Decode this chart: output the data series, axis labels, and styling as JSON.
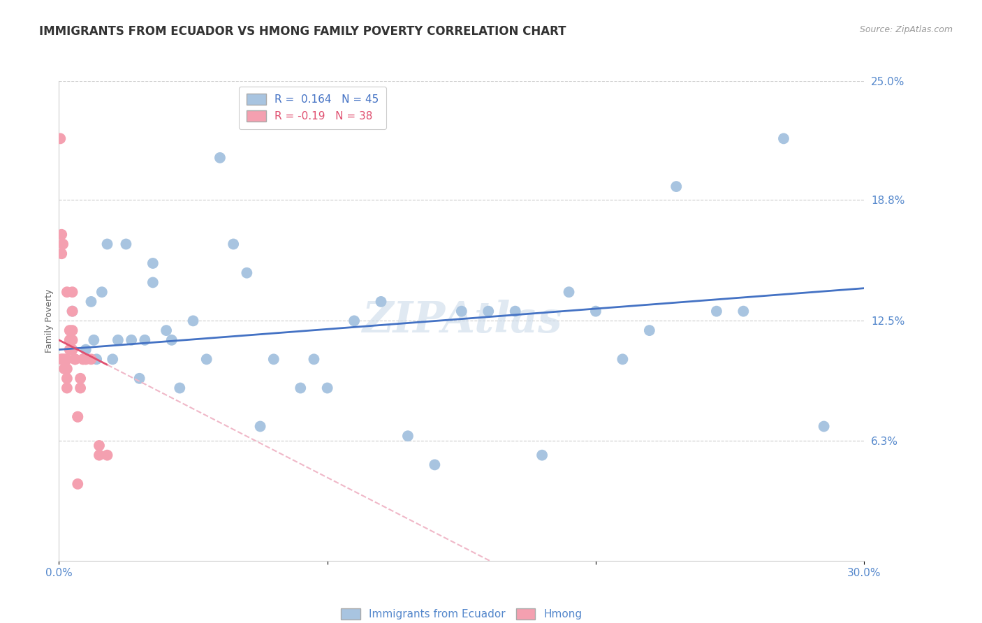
{
  "title": "IMMIGRANTS FROM ECUADOR VS HMONG FAMILY POVERTY CORRELATION CHART",
  "source": "Source: ZipAtlas.com",
  "ylabel": "Family Poverty",
  "watermark": "ZIPAtlas",
  "xmin": 0.0,
  "xmax": 0.3,
  "ymin": 0.0,
  "ymax": 0.25,
  "r_ecuador": 0.164,
  "n_ecuador": 45,
  "r_hmong": -0.19,
  "n_hmong": 38,
  "ecuador_color": "#a8c4e0",
  "hmong_color": "#f4a0b0",
  "trendline_ecuador_color": "#4472c4",
  "trendline_hmong_solid_color": "#e05070",
  "trendline_hmong_dashed_color": "#f0b8c8",
  "grid_color": "#cccccc",
  "background_color": "#ffffff",
  "title_fontsize": 12,
  "axis_label_fontsize": 9,
  "tick_fontsize": 11,
  "legend_fontsize": 11,
  "source_fontsize": 9,
  "ecuador_scatter_x": [
    0.005,
    0.01,
    0.013,
    0.016,
    0.018,
    0.02,
    0.022,
    0.025,
    0.027,
    0.03,
    0.032,
    0.035,
    0.035,
    0.04,
    0.042,
    0.045,
    0.05,
    0.055,
    0.06,
    0.065,
    0.07,
    0.075,
    0.08,
    0.09,
    0.095,
    0.1,
    0.11,
    0.12,
    0.13,
    0.14,
    0.15,
    0.16,
    0.17,
    0.18,
    0.19,
    0.2,
    0.21,
    0.22,
    0.23,
    0.245,
    0.255,
    0.27,
    0.285,
    0.012,
    0.014
  ],
  "ecuador_scatter_y": [
    0.13,
    0.11,
    0.115,
    0.14,
    0.165,
    0.105,
    0.115,
    0.165,
    0.115,
    0.095,
    0.115,
    0.145,
    0.155,
    0.12,
    0.115,
    0.09,
    0.125,
    0.105,
    0.21,
    0.165,
    0.15,
    0.07,
    0.105,
    0.09,
    0.105,
    0.09,
    0.125,
    0.135,
    0.065,
    0.05,
    0.13,
    0.13,
    0.13,
    0.055,
    0.14,
    0.13,
    0.105,
    0.12,
    0.195,
    0.13,
    0.13,
    0.22,
    0.07,
    0.135,
    0.105
  ],
  "hmong_scatter_x": [
    0.0005,
    0.001,
    0.001,
    0.001,
    0.001,
    0.0015,
    0.002,
    0.002,
    0.002,
    0.003,
    0.003,
    0.003,
    0.003,
    0.003,
    0.004,
    0.004,
    0.004,
    0.005,
    0.005,
    0.005,
    0.005,
    0.005,
    0.006,
    0.006,
    0.006,
    0.007,
    0.007,
    0.007,
    0.008,
    0.008,
    0.009,
    0.009,
    0.01,
    0.01,
    0.012,
    0.015,
    0.015,
    0.018
  ],
  "hmong_scatter_y": [
    0.22,
    0.17,
    0.16,
    0.105,
    0.105,
    0.165,
    0.105,
    0.105,
    0.1,
    0.14,
    0.105,
    0.1,
    0.095,
    0.09,
    0.12,
    0.115,
    0.11,
    0.14,
    0.13,
    0.12,
    0.115,
    0.11,
    0.105,
    0.105,
    0.105,
    0.075,
    0.075,
    0.04,
    0.095,
    0.09,
    0.105,
    0.105,
    0.105,
    0.105,
    0.105,
    0.06,
    0.055,
    0.055
  ],
  "hmong_trendline_solid_end": 0.018
}
